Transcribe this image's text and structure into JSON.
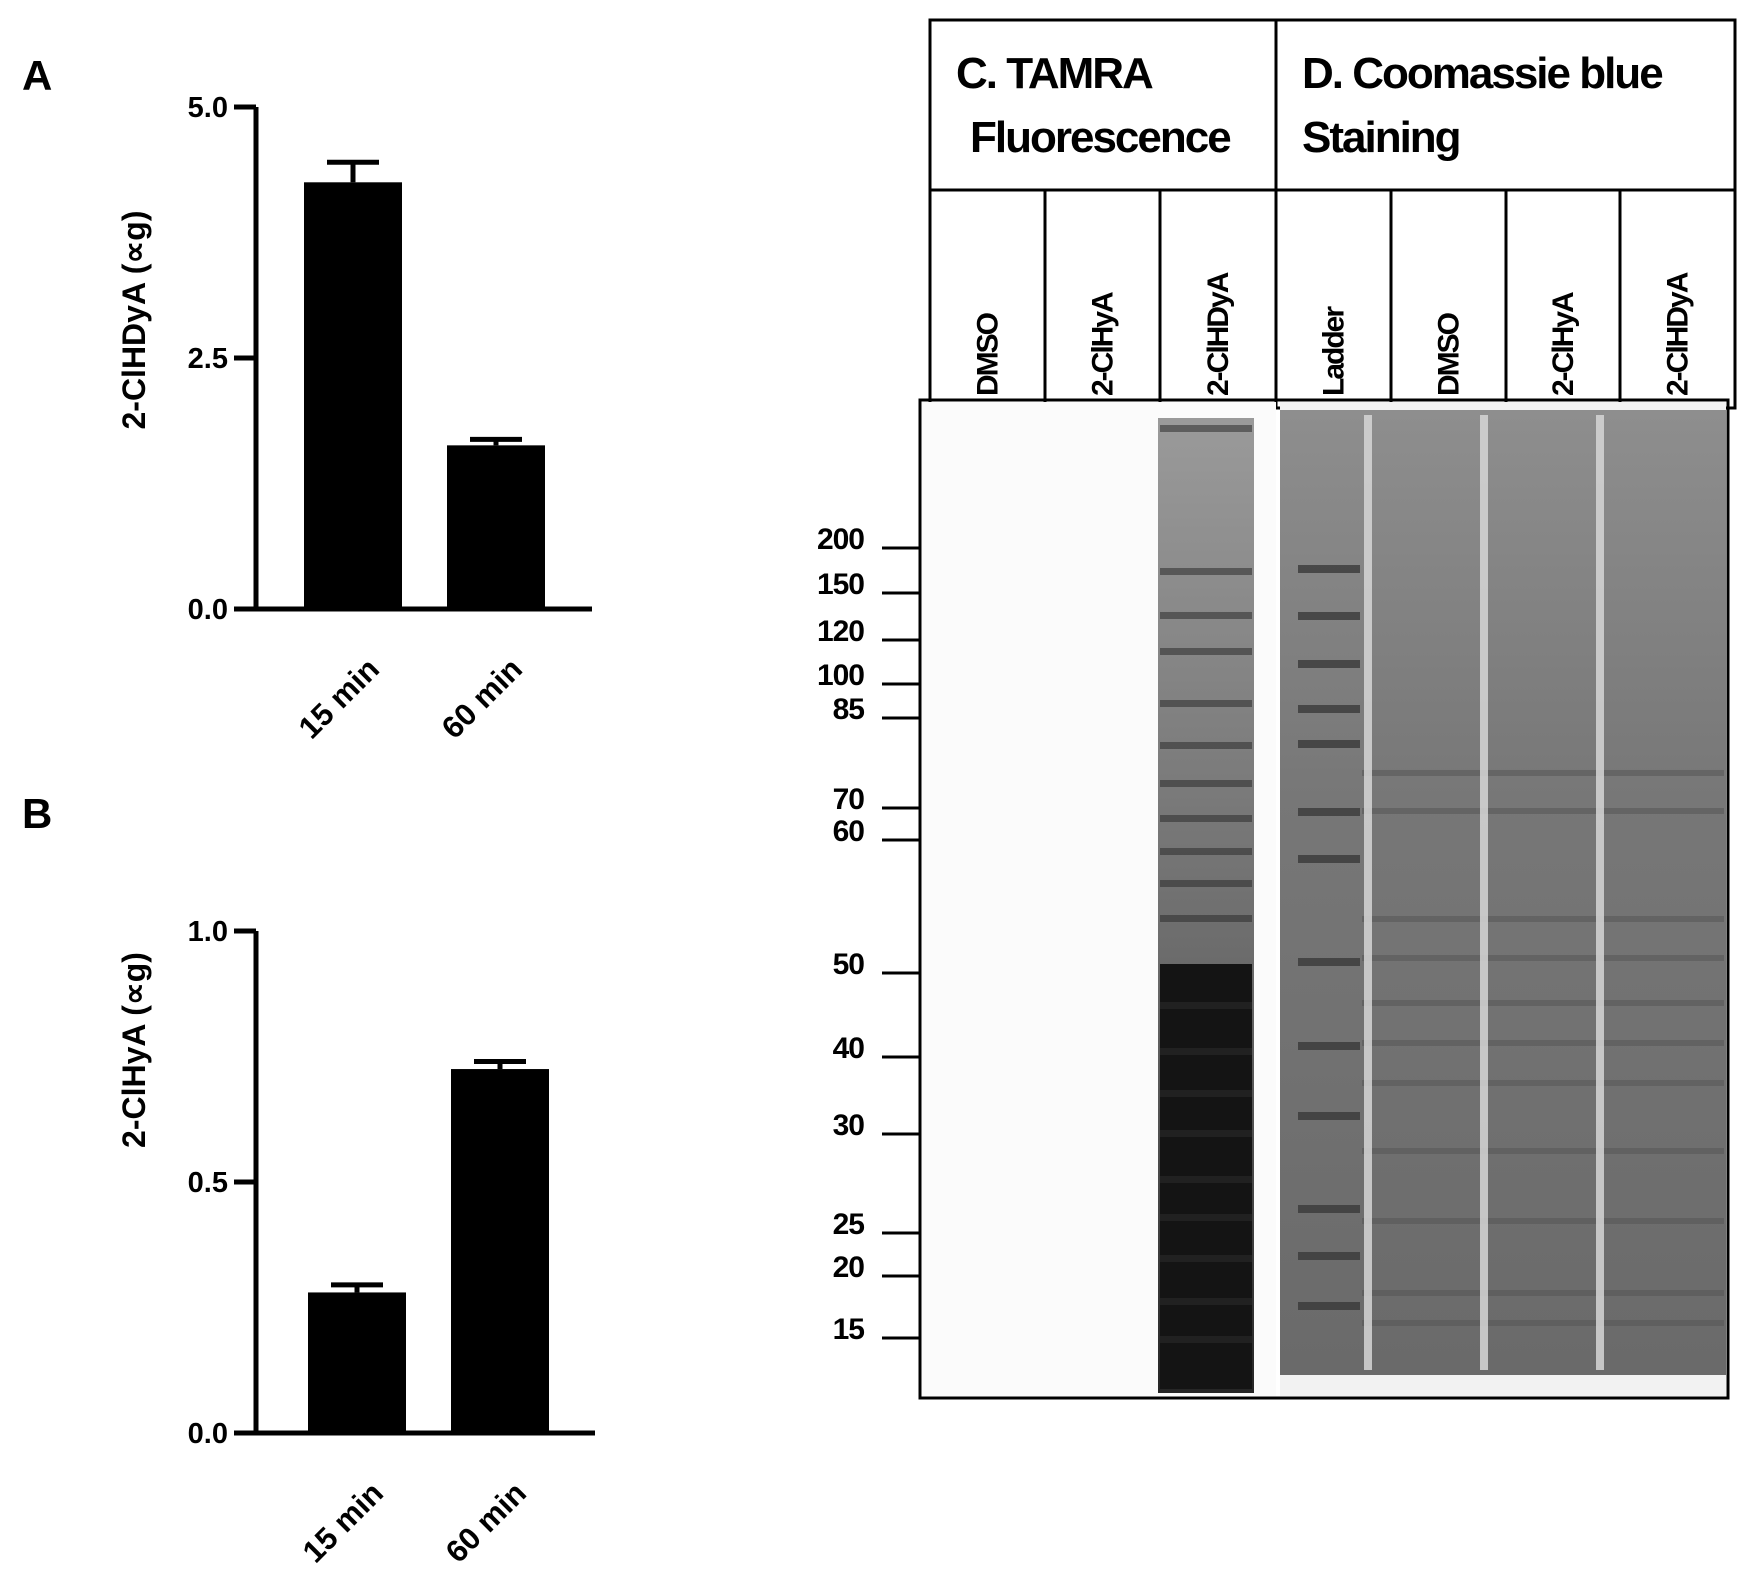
{
  "chart_data": [
    {
      "type": "bar",
      "panel": "A",
      "categories": [
        "15 min",
        "60 min"
      ],
      "values": [
        4.25,
        1.63
      ],
      "errors": [
        0.2,
        0.06
      ],
      "ylabel": "2-ClHDyA (∝g)",
      "ylim": [
        0,
        5
      ],
      "yticks": [
        "0.0",
        "2.5",
        "5.0"
      ]
    },
    {
      "type": "bar",
      "panel": "B",
      "categories": [
        "15 min",
        "60 min"
      ],
      "values": [
        0.28,
        0.725
      ],
      "errors": [
        0.015,
        0.015
      ],
      "ylabel": "2-ClHyA (∝g)",
      "ylim": [
        0,
        1
      ],
      "yticks": [
        "0.0",
        "0.5",
        "1.0"
      ]
    }
  ],
  "gel": {
    "header_c": [
      "C. TAMRA",
      "Fluorescence"
    ],
    "header_d": [
      "D. Coomassie blue",
      "Staining"
    ],
    "lanes_c": [
      "DMSO",
      "2-ClHyA",
      "2-ClHDyA"
    ],
    "lanes_d": [
      "Ladder",
      "DMSO",
      "2-ClHyA",
      "2-ClHDyA"
    ],
    "markers": [
      "200",
      "150",
      "120",
      "100",
      "85",
      "70",
      "60",
      "50",
      "40",
      "30",
      "25",
      "20",
      "15"
    ]
  }
}
